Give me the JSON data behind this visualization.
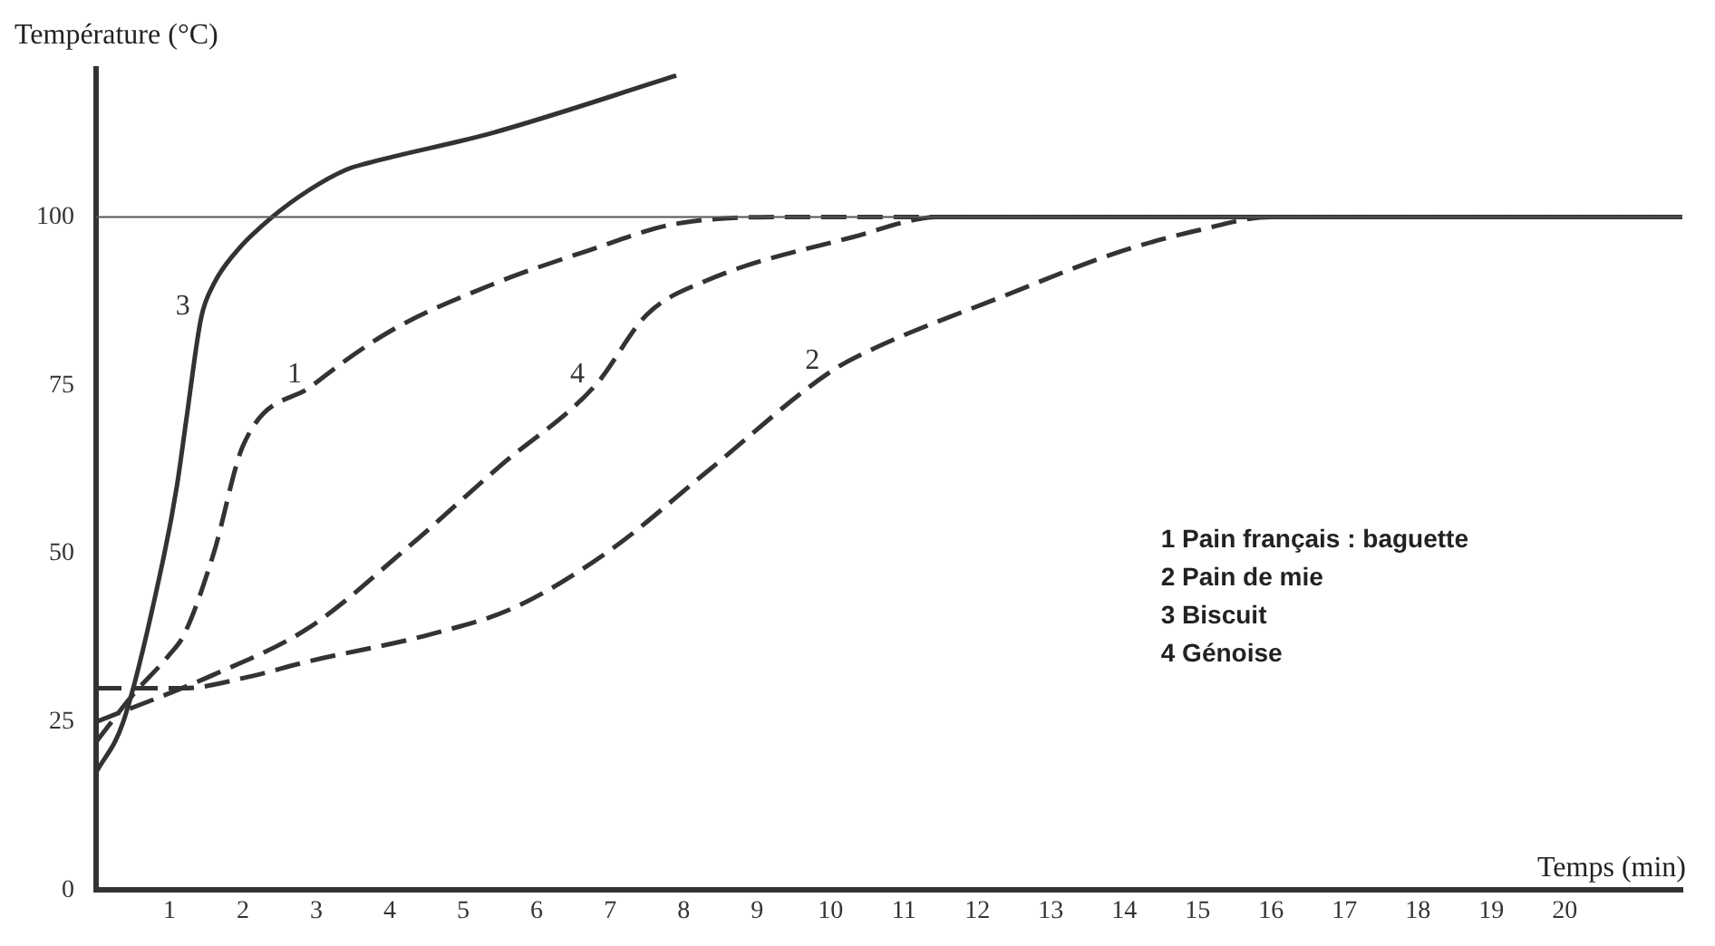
{
  "chart_data": {
    "type": "line",
    "xlabel": "Temps (min)",
    "ylabel": "Température (°C)",
    "xlim": [
      0,
      21.6
    ],
    "ylim": [
      0,
      122
    ],
    "xticks": [
      1,
      2,
      3,
      4,
      5,
      6,
      7,
      8,
      9,
      10,
      11,
      12,
      13,
      14,
      15,
      16,
      17,
      18,
      19,
      20
    ],
    "yticks": [
      0,
      25,
      50,
      75,
      100
    ],
    "grid": false,
    "legend": false,
    "marker": "none",
    "ref_lines": [
      {
        "axis": "y",
        "value": 100,
        "color": "#555555"
      }
    ],
    "annotations": [
      "1 Pain français : baguette",
      "2 Pain de mie",
      "3 Biscuit",
      "4 Génoise"
    ],
    "series": [
      {
        "name": "1",
        "color": "#333333",
        "line_style": "dashed",
        "x": [
          0,
          0.5,
          1,
          1.2,
          1.6,
          2,
          2.95,
          4,
          5.4,
          6.7,
          7.9,
          9.5,
          21.6
        ],
        "values": [
          22,
          29,
          35,
          38,
          50,
          66,
          75,
          83,
          90,
          95,
          99,
          100,
          100
        ]
      },
      {
        "name": "2",
        "color": "#333333",
        "line_style": "dashed",
        "x": [
          0,
          1.2,
          2,
          2.9,
          4.55,
          5.7,
          7,
          8.3,
          10,
          10.6,
          12.3,
          13.9,
          15,
          16,
          21.6
        ],
        "values": [
          30,
          30,
          31.5,
          34,
          38,
          42,
          50.5,
          62,
          77,
          80.5,
          88,
          94.7,
          98,
          100,
          100
        ]
      },
      {
        "name": "3",
        "color": "#333333",
        "line_style": "solid",
        "x": [
          0,
          0.37,
          0.93,
          1.1,
          1.23,
          1.43,
          1.6,
          1.92,
          2.4,
          2.9,
          3.4,
          3.7,
          5.4,
          7.9
        ],
        "values": [
          17.5,
          25,
          50,
          60,
          70,
          85,
          90,
          95,
          100,
          104,
          107,
          108,
          112.5,
          121
        ]
      },
      {
        "name": "4",
        "color": "#333333",
        "line_style": "dashed",
        "x": [
          0,
          1.6,
          2.9,
          4.2,
          5.5,
          6.8,
          7.5,
          8.3,
          10.3,
          11.5,
          21.6
        ],
        "values": [
          25,
          32,
          39,
          50.5,
          63,
          75,
          85.5,
          90.5,
          97,
          100,
          100
        ]
      }
    ]
  }
}
